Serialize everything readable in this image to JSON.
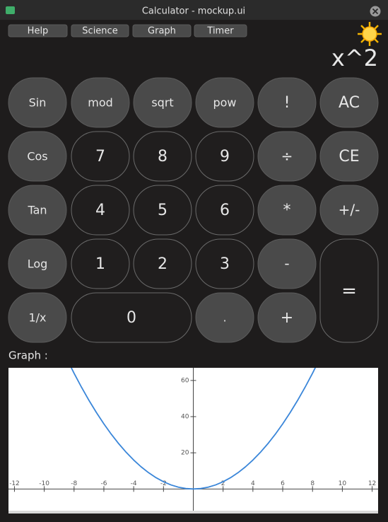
{
  "window": {
    "title": "Calculator - mockup.ui"
  },
  "menu": [
    "Help",
    "Science",
    "Graph",
    "Timer"
  ],
  "display": "x^2",
  "buttons": [
    "Sin",
    "mod",
    "sqrt",
    "pow",
    "!",
    "AC",
    "Cos",
    "7",
    "8",
    "9",
    "÷",
    "CE",
    "Tan",
    "4",
    "5",
    "6",
    "*",
    "+/-",
    "Log",
    "1",
    "2",
    "3",
    "-",
    "=",
    "1/x",
    "0",
    ".",
    "+"
  ],
  "graph_label": "Graph :",
  "chart_data": {
    "type": "line",
    "x": [
      -8.5,
      -8,
      -7.5,
      -7,
      -6.5,
      -6,
      -5.5,
      -5,
      -4.5,
      -4,
      -3.5,
      -3,
      -2.5,
      -2,
      -1.5,
      -1,
      -0.5,
      0,
      0.5,
      1,
      1.5,
      2,
      2.5,
      3,
      3.5,
      4,
      4.5,
      5,
      5.5,
      6,
      6.5,
      7,
      7.5,
      8,
      8.5
    ],
    "series": [
      {
        "color": "#3a86d9",
        "values": [
          72.25,
          64,
          56.25,
          49,
          42.25,
          36,
          30.25,
          25,
          20.25,
          16,
          12.25,
          9,
          6.25,
          4,
          2.25,
          1,
          0.25,
          0,
          0.25,
          1,
          2.25,
          4,
          6.25,
          9,
          12.25,
          16,
          20.25,
          25,
          30.25,
          36,
          42.25,
          49,
          56.25,
          64,
          72.25
        ]
      }
    ],
    "xlim": [
      -12.4,
      12.4
    ],
    "ylim": [
      -12,
      67
    ],
    "xticks": [
      -12,
      -10,
      -8,
      -6,
      -4,
      -2,
      2,
      4,
      6,
      8,
      10,
      12
    ],
    "yticks": [
      20,
      40,
      60
    ]
  }
}
